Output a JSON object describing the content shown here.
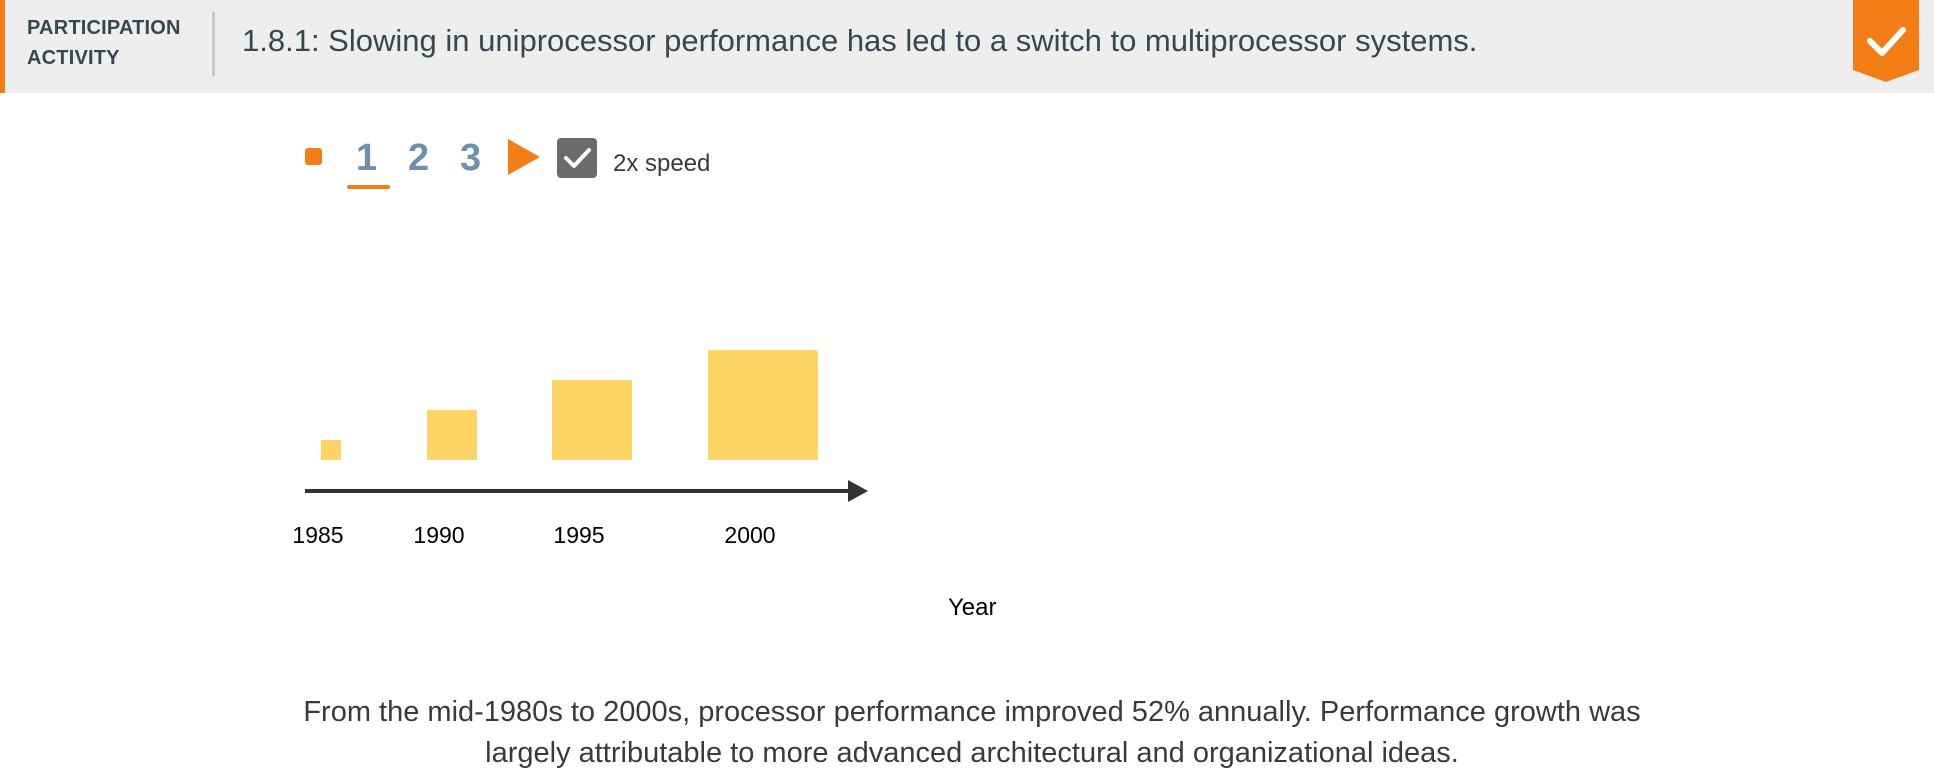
{
  "header": {
    "label_line1": "PARTICIPATION",
    "label_line2": "ACTIVITY",
    "title": "1.8.1: Slowing in uniprocessor performance has led to a switch to multiprocessor systems.",
    "completed_icon": "checkmark-icon",
    "accent_color": "#f47e16"
  },
  "controls": {
    "steps": [
      "1",
      "2",
      "3"
    ],
    "current_step": "1",
    "speed_label": "2x speed",
    "speed_checked": true
  },
  "chart_data": {
    "type": "bar",
    "categories": [
      "1985",
      "1990",
      "1995",
      "2000"
    ],
    "values": [
      1,
      2.5,
      4,
      5.5
    ],
    "xlabel": "Year",
    "ylabel": "",
    "bar_color": "#ffd466",
    "grid": false,
    "legend": "none"
  },
  "caption": {
    "line1": "From the mid-1980s to 2000s, processor performance improved 52% annually. Performance growth was",
    "line2": "largely attributable to more advanced architectural and organizational ideas."
  }
}
